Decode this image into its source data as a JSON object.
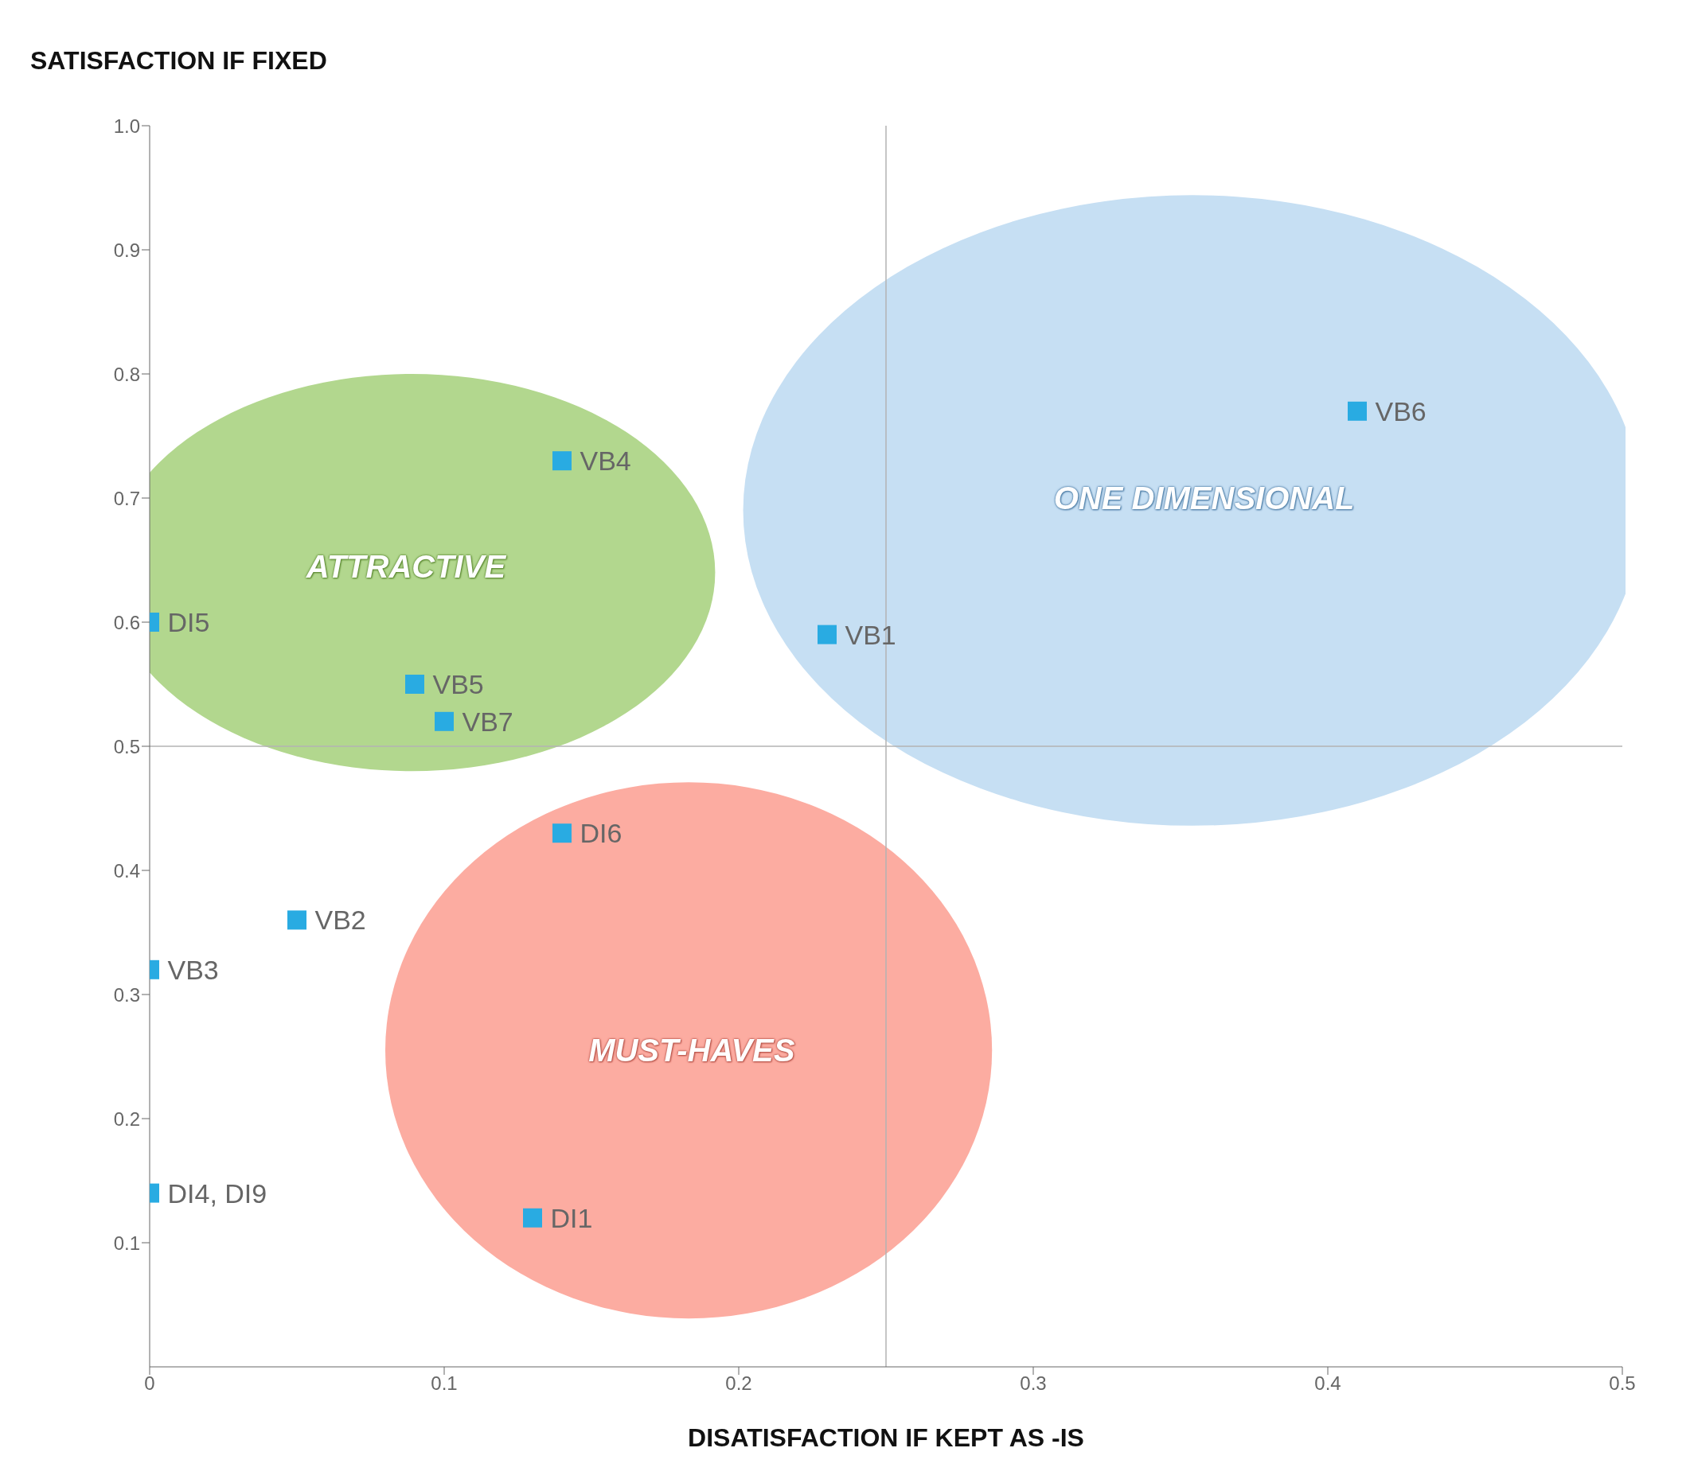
{
  "chart_data": {
    "type": "scatter",
    "ylabel": "SATISFACTION IF FIXED",
    "xlabel": "DISATISFACTION IF KEPT AS -IS",
    "xlim": [
      0,
      0.5
    ],
    "ylim": [
      0,
      1
    ],
    "xticks": [
      0,
      0.1,
      0.2,
      0.3,
      0.4,
      0.5
    ],
    "yticks": [
      0.1,
      0.2,
      0.3,
      0.4,
      0.5,
      0.6,
      0.7,
      0.8,
      0.9,
      {
        "value": 1,
        "label": "1.0"
      }
    ],
    "grid": false,
    "legend": false,
    "marker": "square",
    "ref_lines": [
      {
        "axis": "x",
        "value": 0.25,
        "color": "#b3b3b3"
      },
      {
        "axis": "y",
        "value": 0.5,
        "color": "#b3b3b3"
      }
    ],
    "annotations": [
      "ATTRACTIVE",
      "ONE DIMENSIONAL",
      "MUST-HAVES"
    ],
    "series": [
      {
        "name": "VB6",
        "color": "#29abe2",
        "x": [
          0.41
        ],
        "values": [
          0.77
        ]
      },
      {
        "name": "VB4",
        "color": "#29abe2",
        "x": [
          0.14
        ],
        "values": [
          0.73
        ]
      },
      {
        "name": "DI5",
        "color": "#29abe2",
        "x": [
          0
        ],
        "values": [
          0.6
        ]
      },
      {
        "name": "VB1",
        "color": "#29abe2",
        "x": [
          0.23
        ],
        "values": [
          0.59
        ]
      },
      {
        "name": "VB5",
        "color": "#29abe2",
        "x": [
          0.09
        ],
        "values": [
          0.55
        ]
      },
      {
        "name": "VB7",
        "color": "#29abe2",
        "x": [
          0.1
        ],
        "values": [
          0.52
        ]
      },
      {
        "name": "DI6",
        "color": "#29abe2",
        "x": [
          0.14
        ],
        "values": [
          0.43
        ]
      },
      {
        "name": "VB2",
        "color": "#29abe2",
        "x": [
          0.05
        ],
        "values": [
          0.36
        ]
      },
      {
        "name": "VB3",
        "color": "#29abe2",
        "x": [
          0
        ],
        "values": [
          0.32
        ]
      },
      {
        "name": "DI4, DI9",
        "color": "#29abe2",
        "x": [
          0
        ],
        "values": [
          0.14
        ]
      },
      {
        "name": "DI1",
        "color": "#29abe2",
        "x": [
          0.13
        ],
        "values": [
          0.12
        ]
      }
    ]
  }
}
